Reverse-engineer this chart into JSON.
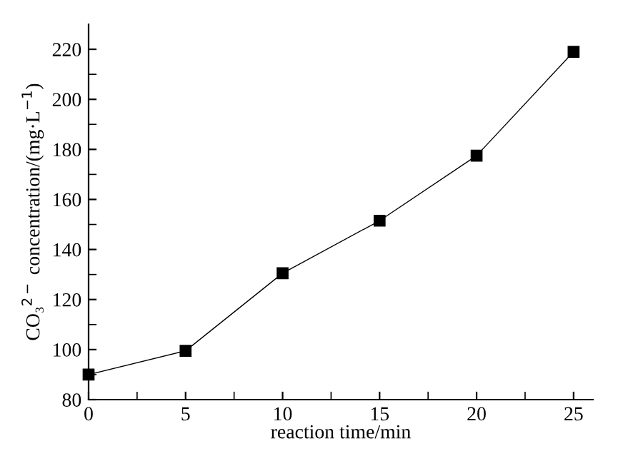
{
  "chart_data": {
    "type": "line",
    "xlabel": "reaction time/min",
    "ylabel": "CO₃$^{2−}$ concentration/(mg·L$^{−1}$)",
    "x": [
      0,
      5,
      10,
      15,
      20,
      25
    ],
    "series": [
      {
        "color": "#000000",
        "values": [
          90,
          99.5,
          130.5,
          151.5,
          177.5,
          219
        ]
      }
    ],
    "marker": "square",
    "line_style": "solid",
    "grid": false,
    "legend": false,
    "xlim": [
      0,
      26
    ],
    "ylim": [
      80,
      230
    ],
    "xticks": [
      0,
      {
        "value": 2.5,
        "label": null
      },
      5,
      {
        "value": 7.5,
        "label": null
      },
      10,
      {
        "value": 12.5,
        "label": null
      },
      15,
      {
        "value": 17.5,
        "label": null
      },
      20,
      {
        "value": 22.5,
        "label": null
      },
      25
    ],
    "yticks": [
      80,
      {
        "value": 90,
        "label": null
      },
      100,
      {
        "value": 110,
        "label": null
      },
      120,
      {
        "value": 130,
        "label": null
      },
      140,
      {
        "value": 150,
        "label": null
      },
      160,
      {
        "value": 170,
        "label": null
      },
      180,
      {
        "value": 190,
        "label": null
      },
      200,
      {
        "value": 210,
        "label": null
      },
      220
    ]
  }
}
